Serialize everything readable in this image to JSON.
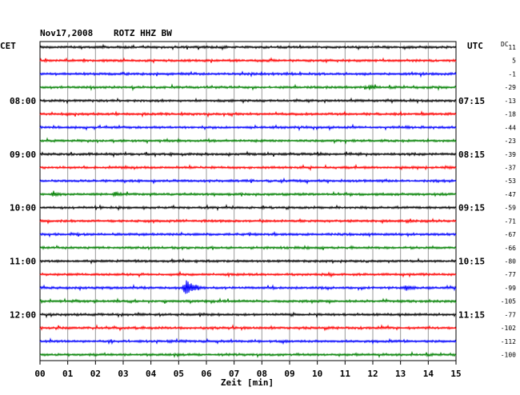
{
  "header": {
    "date": "Nov17,2008",
    "station": "ROTZ HHZ BW",
    "left_zone": "CET",
    "right_zone": "UTC",
    "dc_label": "DC"
  },
  "chart_data": {
    "type": "line",
    "title": "Nov17,2008   ROTZ HHZ BW",
    "xlabel": "Zeit [min]",
    "x_ticks": [
      "00",
      "01",
      "02",
      "03",
      "04",
      "05",
      "06",
      "07",
      "08",
      "09",
      "10",
      "11",
      "12",
      "13",
      "14",
      "15"
    ],
    "xlim": [
      0,
      15
    ],
    "rows_per_hour": 4,
    "trace_colors": [
      "#000000",
      "#ff0000",
      "#0000ff",
      "#008000"
    ],
    "hour_labels_cet": [
      {
        "row": 4,
        "label": "08:00"
      },
      {
        "row": 8,
        "label": "09:00"
      },
      {
        "row": 12,
        "label": "10:00"
      },
      {
        "row": 16,
        "label": "11:00"
      },
      {
        "row": 20,
        "label": "12:00"
      }
    ],
    "hour_labels_utc": [
      {
        "row": 4,
        "label": "07:15"
      },
      {
        "row": 8,
        "label": "08:15"
      },
      {
        "row": 12,
        "label": "09:15"
      },
      {
        "row": 16,
        "label": "10:15"
      },
      {
        "row": 20,
        "label": "11:15"
      }
    ],
    "dc_offsets": [
      "11",
      "5",
      "-1",
      "-29",
      "-13",
      "-18",
      "-44",
      "-23",
      "-39",
      "-37",
      "-53",
      "-47",
      "-59",
      "-71",
      "-67",
      "-66",
      "-80",
      "-77",
      "-99",
      "-105",
      "-77",
      "-102",
      "-112",
      "-100"
    ],
    "events": [
      {
        "row": 18,
        "minute": 5.3,
        "amplitude": "large"
      },
      {
        "row": 18,
        "minute": 13.2,
        "amplitude": "small"
      },
      {
        "row": 3,
        "minute": 11.9,
        "amplitude": "small"
      },
      {
        "row": 11,
        "minute": 0.5,
        "amplitude": "small"
      },
      {
        "row": 11,
        "minute": 2.7,
        "amplitude": "small"
      }
    ]
  }
}
